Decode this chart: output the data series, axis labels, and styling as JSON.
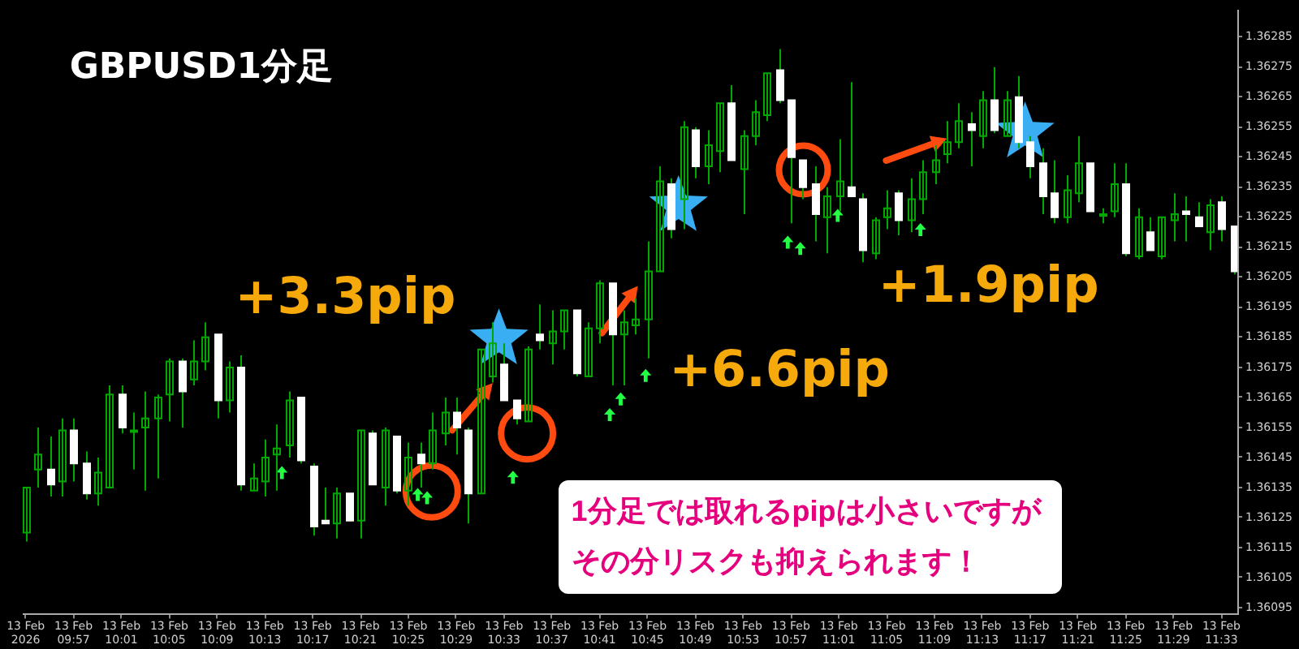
{
  "chart_data": {
    "type": "candlestick",
    "title": "GBPUSD1分足",
    "annotations": [
      "+3.3pip",
      "+6.6pip",
      "+1.9pip",
      "1分足では取れるpipは小さいですがその分リスクも抑えられます！"
    ],
    "color": "#00a800",
    "x": [
      "2026-02-13T09:53",
      "2026-02-13T09:54",
      "2026-02-13T09:55",
      "2026-02-13T09:56",
      "2026-02-13T09:57",
      "2026-02-13T09:58",
      "2026-02-13T09:59",
      "2026-02-13T10:00",
      "2026-02-13T10:01",
      "2026-02-13T10:02",
      "2026-02-13T10:03",
      "2026-02-13T10:04",
      "2026-02-13T10:05",
      "2026-02-13T10:06",
      "2026-02-13T10:07",
      "2026-02-13T10:08",
      "2026-02-13T10:09",
      "2026-02-13T10:10",
      "2026-02-13T10:11",
      "2026-02-13T10:12",
      "2026-02-13T10:13",
      "2026-02-13T10:14",
      "2026-02-13T10:15",
      "2026-02-13T10:16",
      "2026-02-13T10:17",
      "2026-02-13T10:18",
      "2026-02-13T10:19",
      "2026-02-13T10:20",
      "2026-02-13T10:21",
      "2026-02-13T10:22",
      "2026-02-13T10:23",
      "2026-02-13T10:24",
      "2026-02-13T10:25",
      "2026-02-13T10:26",
      "2026-02-13T10:27",
      "2026-02-13T10:28",
      "2026-02-13T10:29",
      "2026-02-13T10:30",
      "2026-02-13T10:31",
      "2026-02-13T10:32",
      "2026-02-13T10:33",
      "2026-02-13T10:34",
      "2026-02-13T10:35",
      "2026-02-13T10:36",
      "2026-02-13T10:37",
      "2026-02-13T10:38",
      "2026-02-13T10:39",
      "2026-02-13T10:40",
      "2026-02-13T10:41",
      "2026-02-13T10:42",
      "2026-02-13T10:43",
      "2026-02-13T10:44",
      "2026-02-13T10:45",
      "2026-02-13T10:46",
      "2026-02-13T10:47",
      "2026-02-13T10:48",
      "2026-02-13T10:49",
      "2026-02-13T10:50",
      "2026-02-13T10:51",
      "2026-02-13T10:52",
      "2026-02-13T10:53",
      "2026-02-13T10:54",
      "2026-02-13T10:55",
      "2026-02-13T10:56",
      "2026-02-13T10:57",
      "2026-02-13T10:58",
      "2026-02-13T10:59",
      "2026-02-13T11:00",
      "2026-02-13T11:01",
      "2026-02-13T11:02",
      "2026-02-13T11:03",
      "2026-02-13T11:04",
      "2026-02-13T11:05",
      "2026-02-13T11:06",
      "2026-02-13T11:07",
      "2026-02-13T11:08",
      "2026-02-13T11:09",
      "2026-02-13T11:10",
      "2026-02-13T11:11",
      "2026-02-13T11:12",
      "2026-02-13T11:13",
      "2026-02-13T11:14",
      "2026-02-13T11:15",
      "2026-02-13T11:16",
      "2026-02-13T11:17",
      "2026-02-13T11:18",
      "2026-02-13T11:19",
      "2026-02-13T11:20",
      "2026-02-13T11:21",
      "2026-02-13T11:22",
      "2026-02-13T11:23",
      "2026-02-13T11:24",
      "2026-02-13T11:25",
      "2026-02-13T11:26",
      "2026-02-13T11:27",
      "2026-02-13T11:28",
      "2026-02-13T11:29",
      "2026-02-13T11:30",
      "2026-02-13T11:31",
      "2026-02-13T11:32",
      "2026-02-13T11:33",
      "2026-02-13T11:34"
    ],
    "ohlc": [
      [
        1.3612,
        1.36135,
        1.36117,
        1.36135
      ],
      [
        1.36141,
        1.36155,
        1.36135,
        1.36146
      ],
      [
        1.36141,
        1.36152,
        1.36132,
        1.36136
      ],
      [
        1.36137,
        1.36158,
        1.36132,
        1.36154
      ],
      [
        1.36154,
        1.36158,
        1.36137,
        1.36143
      ],
      [
        1.36143,
        1.36147,
        1.36131,
        1.36133
      ],
      [
        1.36133,
        1.36145,
        1.36129,
        1.3614
      ],
      [
        1.36135,
        1.36169,
        1.36135,
        1.36166
      ],
      [
        1.36166,
        1.36169,
        1.36153,
        1.36155
      ],
      [
        1.36154,
        1.3616,
        1.36141,
        1.36154
      ],
      [
        1.36155,
        1.36167,
        1.36134,
        1.36158
      ],
      [
        1.36158,
        1.36166,
        1.36138,
        1.36165
      ],
      [
        1.36166,
        1.36178,
        1.36157,
        1.36177
      ],
      [
        1.36177,
        1.36178,
        1.36155,
        1.36167
      ],
      [
        1.36171,
        1.36184,
        1.36169,
        1.36177
      ],
      [
        1.36177,
        1.3619,
        1.36174,
        1.36185
      ],
      [
        1.36186,
        1.36186,
        1.36158,
        1.36164
      ],
      [
        1.36164,
        1.36177,
        1.3616,
        1.36175
      ],
      [
        1.36175,
        1.36179,
        1.36134,
        1.36136
      ],
      [
        1.36134,
        1.36143,
        1.36134,
        1.36138
      ],
      [
        1.36137,
        1.36151,
        1.36132,
        1.36145
      ],
      [
        1.36146,
        1.36156,
        1.36134,
        1.36148
      ],
      [
        1.36149,
        1.36167,
        1.36145,
        1.36164
      ],
      [
        1.36165,
        1.36165,
        1.36143,
        1.36144
      ],
      [
        1.36142,
        1.36143,
        1.36119,
        1.36122
      ],
      [
        1.36124,
        1.36135,
        1.36123,
        1.36123
      ],
      [
        1.36123,
        1.36135,
        1.36118,
        1.36133
      ],
      [
        1.36133,
        1.36133,
        1.36124,
        1.36124
      ],
      [
        1.36124,
        1.36154,
        1.36118,
        1.36154
      ],
      [
        1.36153,
        1.36154,
        1.36136,
        1.36136
      ],
      [
        1.36135,
        1.36155,
        1.36129,
        1.36154
      ],
      [
        1.36152,
        1.36152,
        1.36133,
        1.36134
      ],
      [
        1.36134,
        1.3615,
        1.36129,
        1.36145
      ],
      [
        1.36146,
        1.3615,
        1.36135,
        1.36143
      ],
      [
        1.36143,
        1.3616,
        1.36141,
        1.36154
      ],
      [
        1.36153,
        1.36165,
        1.36149,
        1.3616
      ],
      [
        1.3616,
        1.36165,
        1.36146,
        1.36155
      ],
      [
        1.36154,
        1.36155,
        1.36123,
        1.36133
      ],
      [
        1.36133,
        1.36181,
        1.36133,
        1.36181
      ],
      [
        1.36172,
        1.3619,
        1.3617,
        1.36183
      ],
      [
        1.36176,
        1.36183,
        1.36164,
        1.36164
      ],
      [
        1.36164,
        1.36164,
        1.36156,
        1.36158
      ],
      [
        1.36157,
        1.36182,
        1.36157,
        1.36181
      ],
      [
        1.36186,
        1.36196,
        1.36181,
        1.36184
      ],
      [
        1.36183,
        1.36194,
        1.36176,
        1.36187
      ],
      [
        1.36187,
        1.36194,
        1.36181,
        1.36194
      ],
      [
        1.36194,
        1.36194,
        1.36172,
        1.36173
      ],
      [
        1.36172,
        1.3619,
        1.36172,
        1.36188
      ],
      [
        1.36188,
        1.36204,
        1.36183,
        1.36203
      ],
      [
        1.36203,
        1.36203,
        1.36169,
        1.36186
      ],
      [
        1.36186,
        1.36194,
        1.36169,
        1.3619
      ],
      [
        1.36189,
        1.36198,
        1.36186,
        1.36191
      ],
      [
        1.36191,
        1.36217,
        1.36178,
        1.36207
      ],
      [
        1.36207,
        1.36242,
        1.36207,
        1.36237
      ],
      [
        1.36236,
        1.36238,
        1.36218,
        1.36221
      ],
      [
        1.36231,
        1.36257,
        1.36221,
        1.36255
      ],
      [
        1.36254,
        1.36255,
        1.36238,
        1.36242
      ],
      [
        1.36242,
        1.36254,
        1.36236,
        1.36249
      ],
      [
        1.36247,
        1.36263,
        1.3624,
        1.36263
      ],
      [
        1.36263,
        1.36269,
        1.36244,
        1.36244
      ],
      [
        1.36241,
        1.36254,
        1.36226,
        1.36252
      ],
      [
        1.36252,
        1.36264,
        1.36249,
        1.3626
      ],
      [
        1.36259,
        1.36273,
        1.36257,
        1.36273
      ],
      [
        1.36274,
        1.36281,
        1.36263,
        1.36264
      ],
      [
        1.36264,
        1.36264,
        1.36223,
        1.36245
      ],
      [
        1.36244,
        1.36244,
        1.36231,
        1.36235
      ],
      [
        1.36236,
        1.36242,
        1.36217,
        1.36226
      ],
      [
        1.36225,
        1.36235,
        1.36213,
        1.36232
      ],
      [
        1.36232,
        1.36251,
        1.36227,
        1.36237
      ],
      [
        1.36235,
        1.3627,
        1.36232,
        1.36232
      ],
      [
        1.36231,
        1.36233,
        1.3621,
        1.36214
      ],
      [
        1.36213,
        1.36225,
        1.36211,
        1.36224
      ],
      [
        1.36225,
        1.36234,
        1.36221,
        1.36228
      ],
      [
        1.36233,
        1.36234,
        1.36219,
        1.36224
      ],
      [
        1.36224,
        1.36238,
        1.3622,
        1.36231
      ],
      [
        1.36231,
        1.36244,
        1.36226,
        1.3624
      ],
      [
        1.3624,
        1.36249,
        1.36236,
        1.36244
      ],
      [
        1.36246,
        1.36257,
        1.36243,
        1.3625
      ],
      [
        1.3625,
        1.36263,
        1.36248,
        1.36257
      ],
      [
        1.36256,
        1.3626,
        1.36242,
        1.36254
      ],
      [
        1.36252,
        1.36267,
        1.36248,
        1.36264
      ],
      [
        1.36264,
        1.36275,
        1.36253,
        1.36254
      ],
      [
        1.36252,
        1.36267,
        1.36252,
        1.36264
      ],
      [
        1.36265,
        1.36272,
        1.36248,
        1.3625
      ],
      [
        1.3625,
        1.36252,
        1.36238,
        1.36242
      ],
      [
        1.36243,
        1.36248,
        1.36226,
        1.36232
      ],
      [
        1.36233,
        1.36244,
        1.36223,
        1.36225
      ],
      [
        1.36225,
        1.36239,
        1.36223,
        1.36234
      ],
      [
        1.36233,
        1.36252,
        1.3623,
        1.36243
      ],
      [
        1.36243,
        1.36243,
        1.36227,
        1.36227
      ],
      [
        1.36226,
        1.36228,
        1.36223,
        1.36226
      ],
      [
        1.36227,
        1.36243,
        1.36225,
        1.36236
      ],
      [
        1.36236,
        1.36243,
        1.36212,
        1.36213
      ],
      [
        1.36212,
        1.36228,
        1.36211,
        1.36225
      ],
      [
        1.3622,
        1.36225,
        1.36214,
        1.36214
      ],
      [
        1.36212,
        1.36225,
        1.36211,
        1.36225
      ],
      [
        1.36224,
        1.36233,
        1.36217,
        1.36226
      ],
      [
        1.36227,
        1.36232,
        1.36217,
        1.36226
      ],
      [
        1.36225,
        1.3623,
        1.36222,
        1.36222
      ],
      [
        1.3622,
        1.36231,
        1.36214,
        1.36229
      ],
      [
        1.3623,
        1.36232,
        1.36217,
        1.36221
      ],
      [
        1.36222,
        1.36222,
        1.36206,
        1.36207
      ]
    ],
    "colors": [
      "#00a800",
      "#00a800",
      "#ffffff",
      "#00a800",
      "#ffffff",
      "#ffffff",
      "#00a800",
      "#00a800",
      "#ffffff",
      "#00a800",
      "#00a800",
      "#00a800",
      "#00a800",
      "#ffffff",
      "#00a800",
      "#00a800",
      "#ffffff",
      "#00a800",
      "#ffffff",
      "#00a800",
      "#00a800",
      "#00a800",
      "#00a800",
      "#ffffff",
      "#ffffff",
      "#ffffff",
      "#00a800",
      "#ffffff",
      "#00a800",
      "#ffffff",
      "#00a800",
      "#ffffff",
      "#00a800",
      "#ffffff",
      "#00a800",
      "#00a800",
      "#ffffff",
      "#ffffff",
      "#00a800",
      "#00a800",
      "#ffffff",
      "#ffffff",
      "#00a800",
      "#ffffff",
      "#00a800",
      "#00a800",
      "#ffffff",
      "#00a800",
      "#00a800",
      "#ffffff",
      "#00a800",
      "#00a800",
      "#00a800",
      "#00a800",
      "#ffffff",
      "#00a800",
      "#ffffff",
      "#00a800",
      "#00a800",
      "#ffffff",
      "#00a800",
      "#00a800",
      "#00a800",
      "#ffffff",
      "#ffffff",
      "#ffffff",
      "#ffffff",
      "#00a800",
      "#00a800",
      "#ffffff",
      "#ffffff",
      "#00a800",
      "#00a800",
      "#ffffff",
      "#00a800",
      "#00a800",
      "#00a800",
      "#00a800",
      "#00a800",
      "#ffffff",
      "#00a800",
      "#ffffff",
      "#00a800",
      "#ffffff",
      "#ffffff",
      "#ffffff",
      "#ffffff",
      "#00a800",
      "#00a800",
      "#ffffff",
      "#00a800",
      "#00a800",
      "#ffffff",
      "#00a800",
      "#ffffff",
      "#00a800",
      "#00a800",
      "#ffffff",
      "#ffffff",
      "#00a800",
      "#ffffff",
      "#ffffff"
    ],
    "xlim": [
      "2026-02-13T09:52:45",
      "2026-02-13T11:34:20"
    ],
    "xticks": [
      {
        "value": "2026-02-13T09:53",
        "label": "13 Feb 2026"
      },
      {
        "value": "2026-02-13T09:57",
        "label": "13 Feb 09:57"
      },
      {
        "value": "2026-02-13T10:01",
        "label": "13 Feb 10:01"
      },
      {
        "value": "2026-02-13T10:05",
        "label": "13 Feb 10:05"
      },
      {
        "value": "2026-02-13T10:09",
        "label": "13 Feb 10:09"
      },
      {
        "value": "2026-02-13T10:13",
        "label": "13 Feb 10:13"
      },
      {
        "value": "2026-02-13T10:17",
        "label": "13 Feb 10:17"
      },
      {
        "value": "2026-02-13T10:21",
        "label": "13 Feb 10:21"
      },
      {
        "value": "2026-02-13T10:25",
        "label": "13 Feb 10:25"
      },
      {
        "value": "2026-02-13T10:29",
        "label": "13 Feb 10:29"
      },
      {
        "value": "2026-02-13T10:33",
        "label": "13 Feb 10:33"
      },
      {
        "value": "2026-02-13T10:37",
        "label": "13 Feb 10:37"
      },
      {
        "value": "2026-02-13T10:41",
        "label": "13 Feb 10:41"
      },
      {
        "value": "2026-02-13T10:45",
        "label": "13 Feb 10:45"
      },
      {
        "value": "2026-02-13T10:49",
        "label": "13 Feb 10:49"
      },
      {
        "value": "2026-02-13T10:53",
        "label": "13 Feb 10:53"
      },
      {
        "value": "2026-02-13T10:57",
        "label": "13 Feb 10:57"
      },
      {
        "value": "2026-02-13T11:01",
        "label": "13 Feb 11:01"
      },
      {
        "value": "2026-02-13T11:05",
        "label": "13 Feb 11:05"
      },
      {
        "value": "2026-02-13T11:09",
        "label": "13 Feb 11:09"
      },
      {
        "value": "2026-02-13T11:13",
        "label": "13 Feb 11:13"
      },
      {
        "value": "2026-02-13T11:17",
        "label": "13 Feb 11:17"
      },
      {
        "value": "2026-02-13T11:21",
        "label": "13 Feb 11:21"
      },
      {
        "value": "2026-02-13T11:25",
        "label": "13 Feb 11:25"
      },
      {
        "value": "2026-02-13T11:29",
        "label": "13 Feb 11:29"
      },
      {
        "value": "2026-02-13T11:33",
        "label": "13 Feb 11:33"
      }
    ],
    "ylim": [
      1.36093,
      1.36294
    ],
    "yticks": [
      1.36095,
      1.36105,
      1.36115,
      1.36125,
      1.36135,
      1.36145,
      1.36155,
      1.36165,
      1.36175,
      1.36185,
      1.36195,
      1.36205,
      1.36215,
      1.36225,
      1.36235,
      1.36245,
      1.36255,
      1.36265,
      1.36275,
      1.36285
    ],
    "grid": false,
    "legend": false
  }
}
